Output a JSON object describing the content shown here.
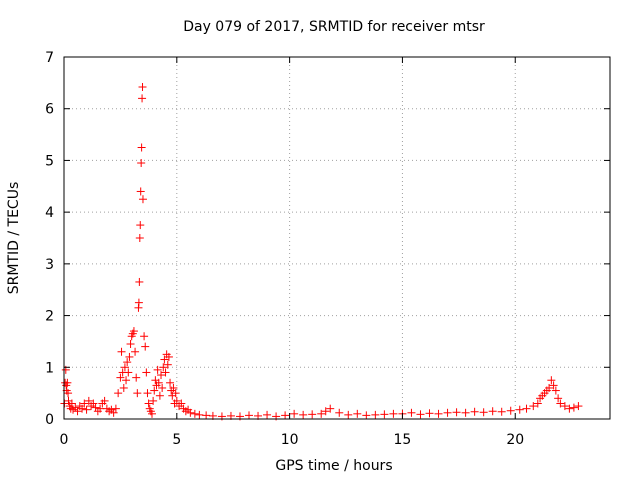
{
  "chart_data": {
    "type": "scatter",
    "title": "Day 079 of 2017, SRMTID for receiver mtsr",
    "xlabel": "GPS time / hours",
    "ylabel": "SRMTID / TECUs",
    "xlim": [
      0,
      24.2
    ],
    "ylim": [
      0,
      7
    ],
    "x_ticks": [
      0,
      5,
      10,
      15,
      20
    ],
    "x_tick_labels": [
      "0",
      "5",
      "10",
      "15",
      "20"
    ],
    "y_ticks": [
      0,
      1,
      2,
      3,
      4,
      5,
      6,
      7
    ],
    "y_tick_labels": [
      "0",
      "1",
      "2",
      "3",
      "4",
      "5",
      "6",
      "7"
    ],
    "grid": true,
    "marker": "+",
    "color": "#ff0000",
    "series": [
      {
        "name": "SRMTID",
        "x": [
          0.02,
          0.05,
          0.08,
          0.1,
          0.12,
          0.15,
          0.18,
          0.2,
          0.25,
          0.3,
          0.35,
          0.4,
          0.5,
          0.6,
          0.7,
          0.8,
          0.9,
          1.0,
          1.1,
          1.2,
          1.3,
          1.4,
          1.5,
          1.6,
          1.7,
          1.8,
          1.9,
          2.0,
          2.1,
          2.2,
          2.3,
          2.4,
          2.5,
          2.55,
          2.6,
          2.65,
          2.7,
          2.75,
          2.8,
          2.85,
          2.9,
          2.95,
          3.0,
          3.05,
          3.1,
          3.15,
          3.2,
          3.25,
          3.3,
          3.32,
          3.34,
          3.36,
          3.38,
          3.4,
          3.42,
          3.44,
          3.46,
          3.48,
          3.5,
          3.55,
          3.6,
          3.65,
          3.7,
          3.75,
          3.8,
          3.85,
          3.9,
          3.95,
          4.0,
          4.05,
          4.1,
          4.15,
          4.2,
          4.25,
          4.3,
          4.35,
          4.4,
          4.45,
          4.5,
          4.55,
          4.6,
          4.65,
          4.7,
          4.75,
          4.8,
          4.85,
          4.9,
          4.95,
          5.0,
          5.1,
          5.2,
          5.3,
          5.4,
          5.5,
          5.6,
          5.8,
          6.0,
          6.3,
          6.6,
          7.0,
          7.4,
          7.8,
          8.2,
          8.6,
          9.0,
          9.4,
          9.8,
          10.2,
          10.6,
          11.0,
          11.4,
          11.6,
          11.8,
          12.2,
          12.6,
          13.0,
          13.4,
          13.8,
          14.2,
          14.6,
          15.0,
          15.4,
          15.8,
          16.2,
          16.6,
          17.0,
          17.4,
          17.8,
          18.2,
          18.6,
          19.0,
          19.4,
          19.8,
          20.2,
          20.5,
          20.8,
          21.0,
          21.1,
          21.2,
          21.3,
          21.4,
          21.5,
          21.6,
          21.7,
          21.8,
          21.9,
          22.0,
          22.2,
          22.4,
          22.6,
          22.8
        ],
        "y": [
          0.3,
          0.7,
          0.95,
          0.65,
          0.55,
          0.7,
          0.5,
          0.35,
          0.25,
          0.2,
          0.3,
          0.18,
          0.22,
          0.15,
          0.25,
          0.2,
          0.3,
          0.18,
          0.35,
          0.25,
          0.3,
          0.22,
          0.15,
          0.2,
          0.3,
          0.35,
          0.2,
          0.15,
          0.18,
          0.12,
          0.2,
          0.5,
          0.8,
          1.3,
          0.9,
          0.6,
          1.0,
          0.75,
          1.1,
          0.9,
          1.2,
          1.45,
          1.6,
          1.65,
          1.7,
          1.3,
          0.8,
          0.5,
          2.15,
          2.25,
          2.65,
          3.5,
          3.75,
          4.4,
          4.95,
          5.25,
          6.2,
          6.42,
          4.25,
          1.6,
          1.4,
          0.9,
          0.5,
          0.3,
          0.2,
          0.15,
          0.1,
          0.35,
          0.55,
          0.75,
          0.65,
          0.95,
          0.7,
          0.45,
          0.85,
          0.6,
          1.0,
          1.15,
          0.9,
          1.25,
          1.05,
          1.2,
          0.7,
          0.55,
          0.45,
          0.6,
          0.3,
          0.5,
          0.35,
          0.25,
          0.3,
          0.2,
          0.15,
          0.18,
          0.12,
          0.1,
          0.08,
          0.07,
          0.06,
          0.05,
          0.06,
          0.05,
          0.07,
          0.06,
          0.08,
          0.05,
          0.07,
          0.1,
          0.08,
          0.09,
          0.1,
          0.15,
          0.2,
          0.12,
          0.08,
          0.1,
          0.07,
          0.08,
          0.09,
          0.1,
          0.1,
          0.12,
          0.09,
          0.11,
          0.1,
          0.12,
          0.13,
          0.12,
          0.14,
          0.13,
          0.15,
          0.14,
          0.16,
          0.18,
          0.2,
          0.25,
          0.3,
          0.4,
          0.45,
          0.5,
          0.55,
          0.6,
          0.75,
          0.65,
          0.55,
          0.4,
          0.3,
          0.25,
          0.2,
          0.22,
          0.25
        ]
      }
    ]
  }
}
